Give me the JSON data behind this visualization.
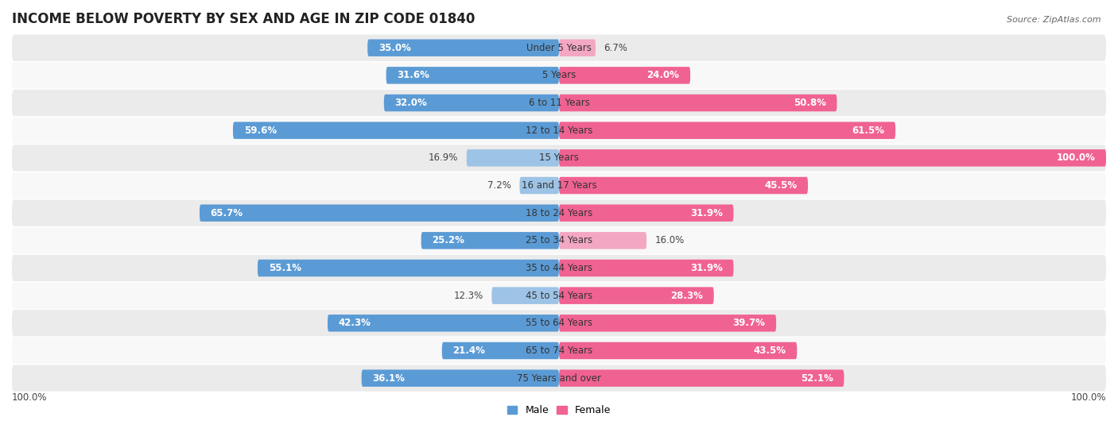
{
  "title": "INCOME BELOW POVERTY BY SEX AND AGE IN ZIP CODE 01840",
  "source": "Source: ZipAtlas.com",
  "categories": [
    "Under 5 Years",
    "5 Years",
    "6 to 11 Years",
    "12 to 14 Years",
    "15 Years",
    "16 and 17 Years",
    "18 to 24 Years",
    "25 to 34 Years",
    "35 to 44 Years",
    "45 to 54 Years",
    "55 to 64 Years",
    "65 to 74 Years",
    "75 Years and over"
  ],
  "male_values": [
    35.0,
    31.6,
    32.0,
    59.6,
    16.9,
    7.2,
    65.7,
    25.2,
    55.1,
    12.3,
    42.3,
    21.4,
    36.1
  ],
  "female_values": [
    6.7,
    24.0,
    50.8,
    61.5,
    100.0,
    45.5,
    31.9,
    16.0,
    31.9,
    28.3,
    39.7,
    43.5,
    52.1
  ],
  "male_color_dark": "#5b9bd5",
  "male_color_light": "#9dc3e6",
  "female_color_dark": "#f06292",
  "female_color_light": "#f4a7c3",
  "row_bg_odd": "#ebebeb",
  "row_bg_even": "#f8f8f8",
  "bar_height": 0.62,
  "xlim": 100.0,
  "legend_male": "Male",
  "legend_female": "Female",
  "axis_label_left": "100.0%",
  "axis_label_right": "100.0%",
  "title_fontsize": 12,
  "label_fontsize": 8.5,
  "category_fontsize": 8.5,
  "source_fontsize": 8.0,
  "inside_label_threshold_male": 20.0,
  "inside_label_threshold_female": 20.0
}
